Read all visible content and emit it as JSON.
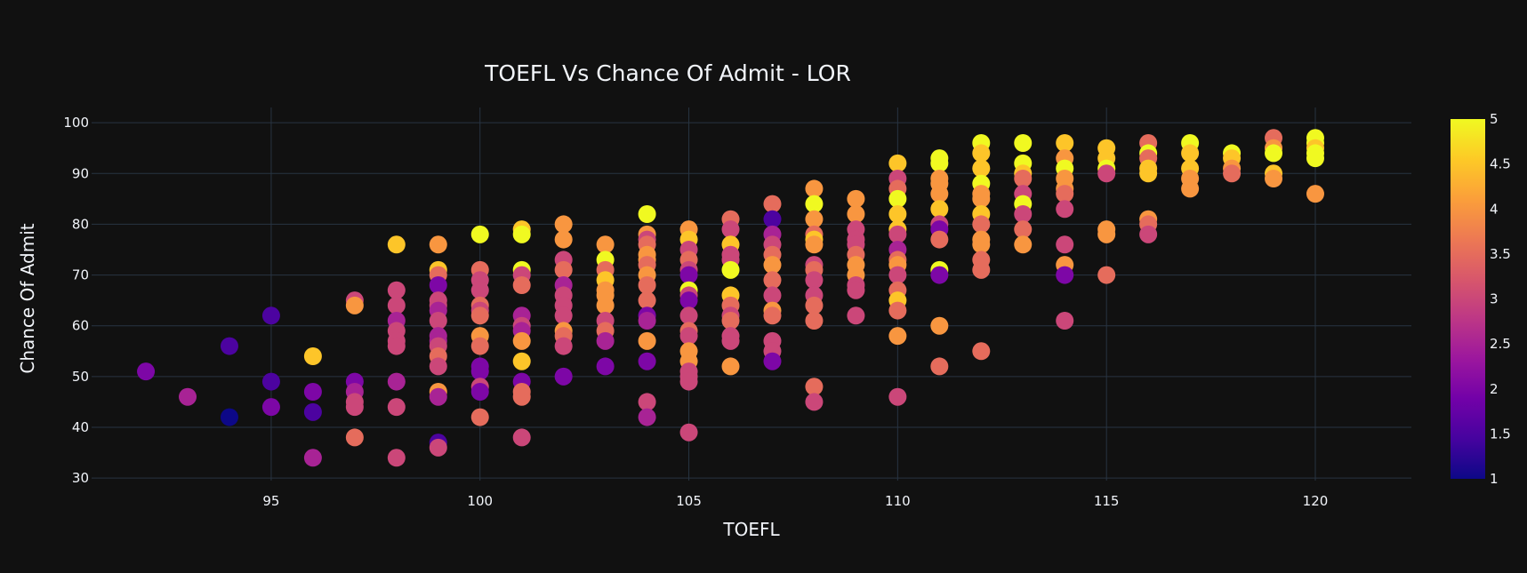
{
  "chart_data": {
    "type": "scatter",
    "title": "TOEFL Vs Chance Of Admit - LOR",
    "xlabel": "TOEFL",
    "ylabel": "Chance Of Admit",
    "xlim": [
      90.7,
      122.3
    ],
    "ylim": [
      29.5,
      103
    ],
    "xticks": [
      95,
      100,
      105,
      110,
      115,
      120
    ],
    "yticks": [
      30,
      40,
      50,
      60,
      70,
      80,
      90,
      100
    ],
    "grid": true,
    "colorbar": {
      "label": "LOR",
      "range": [
        1,
        5
      ],
      "ticks": [
        1,
        1.5,
        2,
        2.5,
        3,
        3.5,
        4,
        4.5,
        5
      ],
      "tick_labels": [
        "1",
        "1.5",
        "2",
        "2.5",
        "3",
        "3.5",
        "4",
        "4.5",
        "5"
      ],
      "colorscale": [
        "#0d0887",
        "#46039f",
        "#7201a8",
        "#9c179e",
        "#bd3786",
        "#d8576b",
        "#ed7953",
        "#fb9f3a",
        "#fdca26",
        "#f0f921"
      ]
    },
    "colors": {
      "background": "#111111",
      "grid": "#283442",
      "text": "#f2f5fa"
    },
    "points": [
      [
        92,
        51,
        2
      ],
      [
        93,
        46,
        2.5
      ],
      [
        94,
        56,
        1.5
      ],
      [
        94,
        42,
        1
      ],
      [
        95,
        62,
        1.5
      ],
      [
        95,
        49,
        1.5
      ],
      [
        95,
        44,
        2
      ],
      [
        96,
        47,
        2
      ],
      [
        96,
        43,
        1.5
      ],
      [
        96,
        34,
        2.5
      ],
      [
        97,
        65,
        3
      ],
      [
        97,
        64,
        4
      ],
      [
        97,
        49,
        2
      ],
      [
        97,
        47,
        2.5
      ],
      [
        97,
        45,
        3
      ],
      [
        97,
        44,
        3
      ],
      [
        97,
        38,
        3.5
      ],
      [
        98,
        76,
        4.5
      ],
      [
        98,
        67,
        3
      ],
      [
        98,
        64,
        3
      ],
      [
        98,
        61,
        2.5
      ],
      [
        98,
        59,
        3
      ],
      [
        98,
        57,
        3
      ],
      [
        98,
        56,
        3
      ],
      [
        98,
        49,
        2.5
      ],
      [
        98,
        44,
        3
      ],
      [
        98,
        34,
        3
      ],
      [
        96,
        54,
        4.5
      ],
      [
        99,
        76,
        4
      ],
      [
        99,
        71,
        4.5
      ],
      [
        99,
        70,
        3.5
      ],
      [
        99,
        68,
        2
      ],
      [
        99,
        65,
        3
      ],
      [
        99,
        64,
        3
      ],
      [
        99,
        63,
        2.5
      ],
      [
        99,
        61,
        3
      ],
      [
        99,
        58,
        2.5
      ],
      [
        99,
        57,
        2.5
      ],
      [
        99,
        56,
        3
      ],
      [
        99,
        54,
        3.5
      ],
      [
        99,
        52,
        3
      ],
      [
        99,
        47,
        4
      ],
      [
        99,
        46,
        2.5
      ],
      [
        99,
        37,
        1.5
      ],
      [
        99,
        36,
        3
      ],
      [
        100,
        78,
        5
      ],
      [
        100,
        71,
        3.5
      ],
      [
        100,
        69,
        3
      ],
      [
        100,
        67,
        3
      ],
      [
        100,
        64,
        3.5
      ],
      [
        100,
        63,
        3
      ],
      [
        100,
        62,
        3.5
      ],
      [
        100,
        58,
        4
      ],
      [
        100,
        56,
        3.5
      ],
      [
        100,
        52,
        2
      ],
      [
        100,
        51,
        2
      ],
      [
        100,
        48,
        3
      ],
      [
        100,
        47,
        2
      ],
      [
        100,
        42,
        3.5
      ],
      [
        101,
        79,
        4.5
      ],
      [
        101,
        78,
        5
      ],
      [
        101,
        71,
        5
      ],
      [
        101,
        70,
        3
      ],
      [
        101,
        68,
        3.5
      ],
      [
        101,
        62,
        2.5
      ],
      [
        101,
        60,
        3
      ],
      [
        101,
        59,
        2.5
      ],
      [
        101,
        57,
        4
      ],
      [
        101,
        53,
        4.5
      ],
      [
        101,
        49,
        2
      ],
      [
        101,
        47,
        3.5
      ],
      [
        101,
        46,
        3.5
      ],
      [
        101,
        38,
        3
      ],
      [
        102,
        80,
        4
      ],
      [
        102,
        77,
        4
      ],
      [
        102,
        73,
        3
      ],
      [
        102,
        71,
        3.5
      ],
      [
        102,
        68,
        2.5
      ],
      [
        102,
        66,
        3
      ],
      [
        102,
        64,
        3
      ],
      [
        102,
        62,
        3
      ],
      [
        102,
        59,
        4
      ],
      [
        102,
        58,
        3.5
      ],
      [
        102,
        56,
        3
      ],
      [
        102,
        50,
        2
      ],
      [
        103,
        76,
        4
      ],
      [
        103,
        73,
        5
      ],
      [
        103,
        71,
        3.5
      ],
      [
        103,
        69,
        4.5
      ],
      [
        103,
        67,
        4
      ],
      [
        103,
        66,
        4
      ],
      [
        103,
        64,
        4
      ],
      [
        103,
        61,
        3
      ],
      [
        103,
        59,
        3.5
      ],
      [
        103,
        57,
        2.5
      ],
      [
        103,
        52,
        2
      ],
      [
        104,
        82,
        5
      ],
      [
        104,
        78,
        4
      ],
      [
        104,
        77,
        3
      ],
      [
        104,
        76,
        3.5
      ],
      [
        104,
        74,
        4
      ],
      [
        104,
        73,
        4
      ],
      [
        104,
        72,
        3.5
      ],
      [
        104,
        70,
        4
      ],
      [
        104,
        68,
        3.5
      ],
      [
        104,
        65,
        3.5
      ],
      [
        104,
        62,
        2
      ],
      [
        104,
        61,
        2.5
      ],
      [
        104,
        57,
        4
      ],
      [
        104,
        53,
        2
      ],
      [
        104,
        45,
        3
      ],
      [
        104,
        42,
        2.5
      ],
      [
        105,
        79,
        4
      ],
      [
        105,
        77,
        4.5
      ],
      [
        105,
        75,
        3
      ],
      [
        105,
        73,
        3.5
      ],
      [
        105,
        71,
        3
      ],
      [
        105,
        70,
        2
      ],
      [
        105,
        67,
        5
      ],
      [
        105,
        66,
        3
      ],
      [
        105,
        65,
        2
      ],
      [
        105,
        62,
        3
      ],
      [
        105,
        59,
        3.5
      ],
      [
        105,
        58,
        3
      ],
      [
        105,
        55,
        4
      ],
      [
        105,
        53,
        4
      ],
      [
        105,
        51,
        3
      ],
      [
        105,
        50,
        3
      ],
      [
        105,
        49,
        3
      ],
      [
        105,
        39,
        3
      ],
      [
        106,
        81,
        3.5
      ],
      [
        106,
        79,
        3
      ],
      [
        106,
        76,
        4.5
      ],
      [
        106,
        74,
        3
      ],
      [
        106,
        73,
        3
      ],
      [
        106,
        71,
        5
      ],
      [
        106,
        66,
        4.5
      ],
      [
        106,
        64,
        3.5
      ],
      [
        106,
        62,
        3
      ],
      [
        106,
        61,
        3.5
      ],
      [
        106,
        58,
        3
      ],
      [
        106,
        57,
        3
      ],
      [
        106,
        52,
        4
      ],
      [
        107,
        84,
        3.5
      ],
      [
        107,
        81,
        1.5
      ],
      [
        107,
        78,
        2.5
      ],
      [
        107,
        76,
        3
      ],
      [
        107,
        74,
        3.5
      ],
      [
        107,
        72,
        4
      ],
      [
        107,
        69,
        3.5
      ],
      [
        107,
        66,
        3
      ],
      [
        107,
        63,
        4
      ],
      [
        107,
        62,
        3.5
      ],
      [
        107,
        57,
        3
      ],
      [
        107,
        55,
        3
      ],
      [
        107,
        53,
        2
      ],
      [
        108,
        87,
        4
      ],
      [
        108,
        84,
        5
      ],
      [
        108,
        81,
        4
      ],
      [
        108,
        78,
        3.5
      ],
      [
        108,
        77,
        4.5
      ],
      [
        108,
        76,
        4
      ],
      [
        108,
        72,
        3
      ],
      [
        108,
        71,
        3.5
      ],
      [
        108,
        69,
        3
      ],
      [
        108,
        66,
        3
      ],
      [
        108,
        64,
        3.5
      ],
      [
        108,
        61,
        3.5
      ],
      [
        108,
        48,
        3.5
      ],
      [
        108,
        45,
        3
      ],
      [
        109,
        85,
        4
      ],
      [
        109,
        82,
        4
      ],
      [
        109,
        79,
        3
      ],
      [
        109,
        77,
        3
      ],
      [
        109,
        76,
        3
      ],
      [
        109,
        74,
        3.5
      ],
      [
        109,
        72,
        4
      ],
      [
        109,
        70,
        4
      ],
      [
        109,
        68,
        3
      ],
      [
        109,
        67,
        3
      ],
      [
        109,
        62,
        3
      ],
      [
        110,
        92,
        4.5
      ],
      [
        110,
        89,
        3
      ],
      [
        110,
        87,
        3.5
      ],
      [
        110,
        85,
        5
      ],
      [
        110,
        82,
        4.5
      ],
      [
        110,
        79,
        4.5
      ],
      [
        110,
        78,
        3
      ],
      [
        110,
        75,
        2.5
      ],
      [
        110,
        73,
        3.5
      ],
      [
        110,
        72,
        4
      ],
      [
        110,
        70,
        3
      ],
      [
        110,
        67,
        3.5
      ],
      [
        110,
        65,
        4.5
      ],
      [
        110,
        63,
        3.5
      ],
      [
        110,
        58,
        4
      ],
      [
        110,
        46,
        3
      ],
      [
        111,
        93,
        5
      ],
      [
        111,
        92,
        5
      ],
      [
        111,
        89,
        4
      ],
      [
        111,
        88,
        4
      ],
      [
        111,
        86,
        4
      ],
      [
        111,
        83,
        4.5
      ],
      [
        111,
        80,
        3
      ],
      [
        111,
        79,
        2
      ],
      [
        111,
        77,
        3.5
      ],
      [
        111,
        71,
        5
      ],
      [
        111,
        70,
        2
      ],
      [
        111,
        60,
        4
      ],
      [
        111,
        52,
        3.5
      ],
      [
        112,
        96,
        5
      ],
      [
        112,
        94,
        4.5
      ],
      [
        112,
        91,
        4.5
      ],
      [
        112,
        88,
        5
      ],
      [
        112,
        86,
        4
      ],
      [
        112,
        85,
        4
      ],
      [
        112,
        82,
        4.5
      ],
      [
        112,
        80,
        3.5
      ],
      [
        112,
        77,
        4
      ],
      [
        112,
        76,
        4
      ],
      [
        112,
        73,
        3.5
      ],
      [
        112,
        71,
        3.5
      ],
      [
        112,
        55,
        3.5
      ],
      [
        113,
        96,
        5
      ],
      [
        113,
        92,
        5
      ],
      [
        113,
        90,
        4.5
      ],
      [
        113,
        89,
        3.5
      ],
      [
        113,
        86,
        3
      ],
      [
        113,
        84,
        5
      ],
      [
        113,
        82,
        3
      ],
      [
        113,
        79,
        3.5
      ],
      [
        113,
        76,
        4
      ],
      [
        114,
        96,
        4.5
      ],
      [
        114,
        93,
        4
      ],
      [
        114,
        91,
        5
      ],
      [
        114,
        89,
        4
      ],
      [
        114,
        87,
        4
      ],
      [
        114,
        86,
        3.5
      ],
      [
        114,
        83,
        3
      ],
      [
        114,
        76,
        3
      ],
      [
        114,
        72,
        4
      ],
      [
        114,
        70,
        2
      ],
      [
        114,
        61,
        3
      ],
      [
        115,
        95,
        4.5
      ],
      [
        115,
        93,
        4.5
      ],
      [
        115,
        91,
        5
      ],
      [
        115,
        90,
        3
      ],
      [
        115,
        79,
        4
      ],
      [
        115,
        78,
        4
      ],
      [
        115,
        70,
        3.5
      ],
      [
        116,
        96,
        3.5
      ],
      [
        116,
        94,
        5
      ],
      [
        116,
        93,
        3.5
      ],
      [
        116,
        91,
        4.5
      ],
      [
        116,
        90,
        4.5
      ],
      [
        116,
        81,
        4
      ],
      [
        116,
        80,
        3.5
      ],
      [
        116,
        78,
        3
      ],
      [
        117,
        96,
        5
      ],
      [
        117,
        94,
        4.5
      ],
      [
        117,
        91,
        4.5
      ],
      [
        117,
        89,
        4
      ],
      [
        117,
        87,
        4
      ],
      [
        118,
        94,
        5
      ],
      [
        118,
        93,
        4.5
      ],
      [
        118,
        91,
        4
      ],
      [
        118,
        90,
        3.5
      ],
      [
        119,
        97,
        3.5
      ],
      [
        119,
        95,
        4
      ],
      [
        119,
        94,
        5
      ],
      [
        119,
        90,
        4.5
      ],
      [
        119,
        89,
        4
      ],
      [
        120,
        97,
        5
      ],
      [
        120,
        96,
        5
      ],
      [
        120,
        95,
        4.5
      ],
      [
        120,
        94,
        5
      ],
      [
        120,
        93,
        5
      ],
      [
        120,
        86,
        4
      ]
    ]
  }
}
